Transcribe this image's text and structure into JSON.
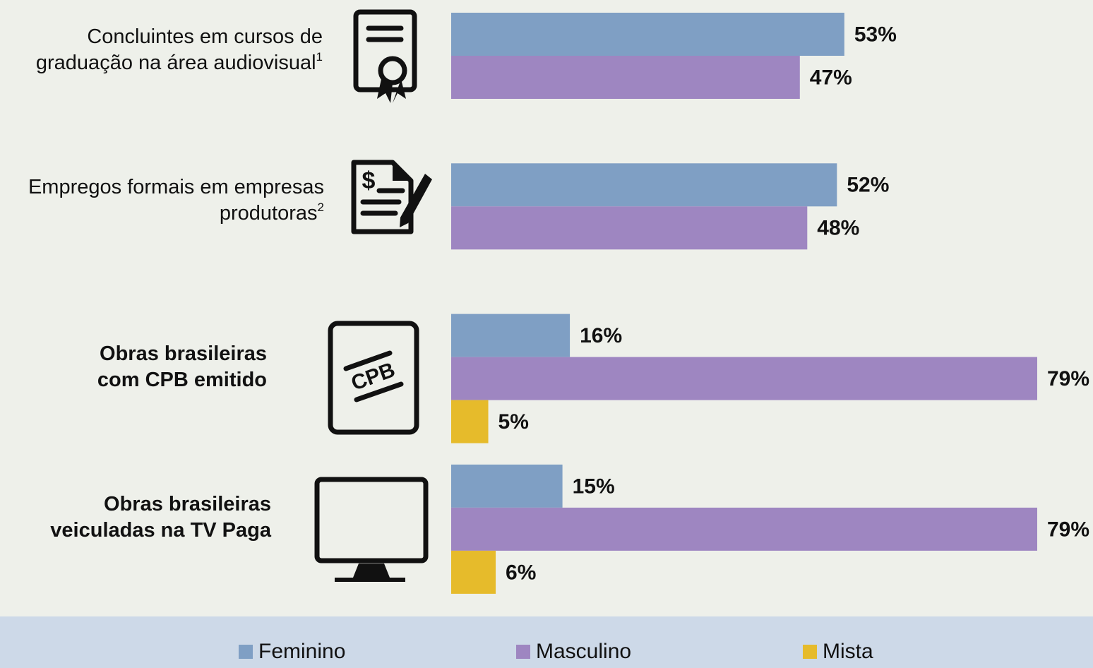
{
  "chart_data": {
    "type": "bar",
    "orientation": "horizontal",
    "categories": [
      "Concluintes em cursos de graduação na área audiovisual",
      "Empregos formais em empresas produtoras",
      "Obras brasileiras com CPB emitido",
      "Obras brasileiras veiculadas na TV Paga"
    ],
    "category_notes": [
      "1",
      "2",
      null,
      null
    ],
    "emphasis": [
      false,
      false,
      true,
      true
    ],
    "series": [
      {
        "name": "Feminino",
        "color": "#7f9fc4",
        "values": [
          53,
          52,
          16,
          15
        ],
        "value_labels": [
          "53%",
          "52%",
          "16%",
          "15%"
        ]
      },
      {
        "name": "Masculino",
        "color": "#9e86c1",
        "values": [
          47,
          48,
          79,
          79
        ],
        "value_labels": [
          "47%",
          "48%",
          "79%",
          "79%"
        ]
      },
      {
        "name": "Mista",
        "color": "#e6bb2b",
        "values": [
          null,
          null,
          5,
          6
        ],
        "value_labels": [
          null,
          null,
          "5%",
          "6%"
        ]
      }
    ],
    "legend": "bottom"
  }
}
